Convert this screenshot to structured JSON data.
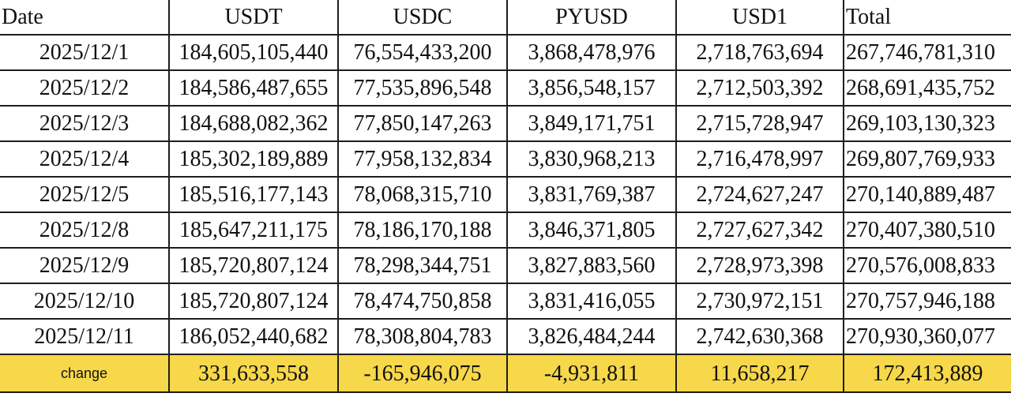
{
  "table": {
    "headers": [
      "Date",
      "USDT",
      "USDC",
      "PYUSD",
      "USD1",
      "Total"
    ],
    "rows": [
      [
        "2025/12/1",
        "184,605,105,440",
        "76,554,433,200",
        "3,868,478,976",
        "2,718,763,694",
        "267,746,781,310"
      ],
      [
        "2025/12/2",
        "184,586,487,655",
        "77,535,896,548",
        "3,856,548,157",
        "2,712,503,392",
        "268,691,435,752"
      ],
      [
        "2025/12/3",
        "184,688,082,362",
        "77,850,147,263",
        "3,849,171,751",
        "2,715,728,947",
        "269,103,130,323"
      ],
      [
        "2025/12/4",
        "185,302,189,889",
        "77,958,132,834",
        "3,830,968,213",
        "2,716,478,997",
        "269,807,769,933"
      ],
      [
        "2025/12/5",
        "185,516,177,143",
        "78,068,315,710",
        "3,831,769,387",
        "2,724,627,247",
        "270,140,889,487"
      ],
      [
        "2025/12/8",
        "185,647,211,175",
        "78,186,170,188",
        "3,846,371,805",
        "2,727,627,342",
        "270,407,380,510"
      ],
      [
        "2025/12/9",
        "185,720,807,124",
        "78,298,344,751",
        "3,827,883,560",
        "2,728,973,398",
        "270,576,008,833"
      ],
      [
        "2025/12/10",
        "185,720,807,124",
        "78,474,750,858",
        "3,831,416,055",
        "2,730,972,151",
        "270,757,946,188"
      ],
      [
        "2025/12/11",
        "186,052,440,682",
        "78,308,804,783",
        "3,826,484,244",
        "2,742,630,368",
        "270,930,360,077"
      ]
    ],
    "change_row": [
      "change",
      "331,633,558",
      "-165,946,075",
      "-4,931,811",
      "11,658,217",
      "172,413,889"
    ]
  },
  "colors": {
    "change_highlight": "#f7d84a",
    "grid_line": "#1e1e1e",
    "text": "#111111"
  }
}
